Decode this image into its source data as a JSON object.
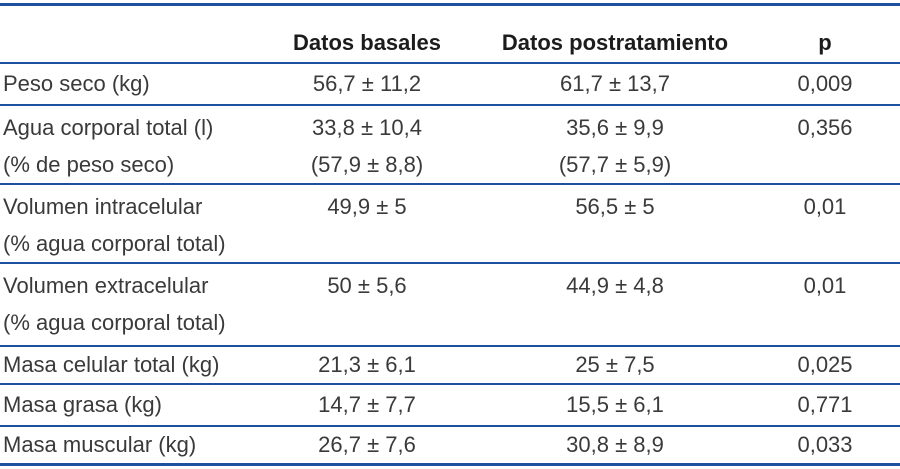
{
  "table": {
    "headers": {
      "basal": "Datos basales",
      "post": "Datos postratamiento",
      "p": "p"
    },
    "rows": [
      {
        "label": "Peso seco (kg)",
        "basal": "56,7 ± 11,2",
        "post": "61,7 ± 13,7",
        "p": "0,009"
      },
      {
        "label": "Agua corporal total (l)",
        "label2": "(% de peso seco)",
        "basal": "33,8 ± 10,4",
        "basal2": "(57,9 ± 8,8)",
        "post": "35,6 ± 9,9",
        "post2": "(57,7 ± 5,9)",
        "p": "0,356"
      },
      {
        "label": "Volumen intracelular",
        "label2": "(% agua corporal total)",
        "basal": "49,9 ± 5",
        "post": "56,5 ± 5",
        "p": "0,01"
      },
      {
        "label": "Volumen extracelular",
        "label2": "(% agua corporal total)",
        "basal": "50 ± 5,6",
        "post": "44,9 ± 4,8",
        "p": "0,01"
      },
      {
        "label": "Masa celular total (kg)",
        "basal": "21,3 ± 6,1",
        "post": "25 ± 7,5",
        "p": "0,025"
      },
      {
        "label": "Masa grasa (kg)",
        "basal": "14,7 ± 7,7",
        "post": "15,5 ± 6,1",
        "p": "0,771"
      },
      {
        "label": "Masa muscular (kg)",
        "basal": "26,7 ± 7,6",
        "post": "30,8 ± 8,9",
        "p": "0,033"
      }
    ],
    "colors": {
      "rule_blue": "#1d509f",
      "body_text": "#3a3a3a",
      "header_text": "#1c1c1c"
    }
  }
}
